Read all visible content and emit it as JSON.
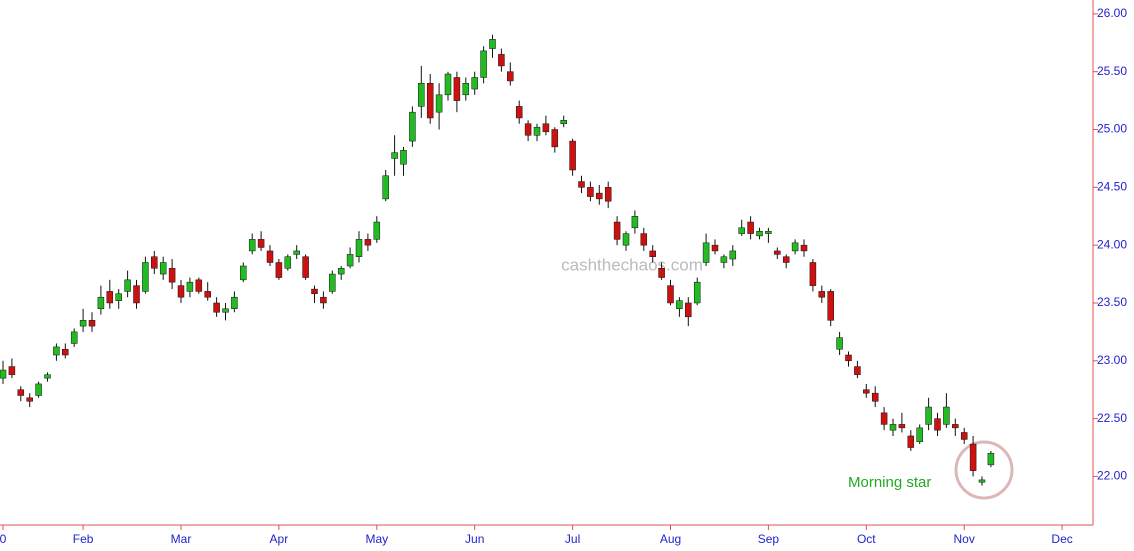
{
  "chart_data": {
    "type": "candlestick",
    "watermark": "cashthechaos.com",
    "annotation": "Morning star",
    "up_color": "#22bb22",
    "down_color": "#cc1111",
    "categories": [
      "0",
      null,
      null,
      null,
      null,
      null,
      null,
      null,
      null,
      "Feb",
      null,
      null,
      null,
      null,
      null,
      null,
      null,
      null,
      null,
      null,
      "Mar",
      null,
      null,
      null,
      null,
      null,
      null,
      null,
      null,
      null,
      null,
      "Apr",
      null,
      null,
      null,
      null,
      null,
      null,
      null,
      null,
      null,
      null,
      "May",
      null,
      null,
      null,
      null,
      null,
      null,
      null,
      null,
      null,
      null,
      "Jun",
      null,
      null,
      null,
      null,
      null,
      null,
      null,
      null,
      null,
      null,
      "Jul",
      null,
      null,
      null,
      null,
      null,
      null,
      null,
      null,
      null,
      null,
      "Aug",
      null,
      null,
      null,
      null,
      null,
      null,
      null,
      null,
      null,
      null,
      "Sep",
      null,
      null,
      null,
      null,
      null,
      null,
      null,
      null,
      null,
      null,
      "Oct",
      null,
      null,
      null,
      null,
      null,
      null,
      null,
      null,
      null,
      null,
      "Nov",
      null,
      null,
      null,
      null,
      null,
      null,
      null,
      null,
      null,
      null,
      "Dec",
      null,
      null
    ],
    "open": [
      22.85,
      22.95,
      22.75,
      22.68,
      22.7,
      22.85,
      23.05,
      23.1,
      23.15,
      23.3,
      23.35,
      23.45,
      23.6,
      23.52,
      23.6,
      23.65,
      23.6,
      23.9,
      23.75,
      23.8,
      23.65,
      23.6,
      23.7,
      23.6,
      23.5,
      23.42,
      23.45,
      23.7,
      23.95,
      24.05,
      23.95,
      23.85,
      23.8,
      23.92,
      23.9,
      23.62,
      23.55,
      23.6,
      23.75,
      23.82,
      23.9,
      24.05,
      24.05,
      24.4,
      24.75,
      24.7,
      24.9,
      25.2,
      25.4,
      25.15,
      25.3,
      25.45,
      25.3,
      25.35,
      25.45,
      25.7,
      25.65,
      25.5,
      25.2,
      25.05,
      24.95,
      25.05,
      25.0,
      25.05,
      24.9,
      24.55,
      24.5,
      24.45,
      24.5,
      24.2,
      24.0,
      24.15,
      24.1,
      23.95,
      23.8,
      23.65,
      23.45,
      23.5,
      23.5,
      23.85,
      24.0,
      23.85,
      23.88,
      24.1,
      24.2,
      24.08,
      24.1,
      23.95,
      23.9,
      23.95,
      24.0,
      23.85,
      23.6,
      23.6,
      23.1,
      23.05,
      22.95,
      22.75,
      22.72,
      22.55,
      22.4,
      22.45,
      22.35,
      22.3,
      22.45,
      22.5,
      22.45,
      22.45,
      22.38,
      22.28,
      21.95,
      22.1,
      null,
      null,
      null,
      null,
      null,
      null,
      null,
      null,
      null,
      null
    ],
    "high": [
      23.0,
      23.02,
      22.78,
      22.72,
      22.82,
      22.9,
      23.15,
      23.15,
      23.28,
      23.45,
      23.42,
      23.65,
      23.7,
      23.62,
      23.78,
      23.7,
      23.9,
      23.95,
      23.9,
      23.88,
      23.7,
      23.72,
      23.72,
      23.68,
      23.55,
      23.5,
      23.6,
      23.85,
      24.1,
      24.12,
      24.0,
      23.88,
      23.92,
      24.0,
      23.92,
      23.65,
      23.6,
      23.78,
      23.82,
      23.98,
      24.12,
      24.1,
      24.25,
      24.65,
      24.95,
      24.85,
      25.2,
      25.55,
      25.48,
      25.4,
      25.5,
      25.5,
      25.45,
      25.5,
      25.72,
      25.82,
      25.7,
      25.58,
      25.25,
      25.08,
      25.05,
      25.12,
      25.02,
      25.12,
      24.92,
      24.6,
      24.55,
      24.52,
      24.55,
      24.25,
      24.12,
      24.3,
      24.15,
      24.0,
      23.85,
      23.7,
      23.55,
      23.55,
      23.72,
      24.1,
      24.05,
      23.92,
      24.0,
      24.22,
      24.25,
      24.15,
      24.15,
      23.98,
      23.92,
      24.05,
      24.05,
      23.88,
      23.65,
      23.62,
      23.25,
      23.08,
      23.0,
      22.8,
      22.78,
      22.6,
      22.5,
      22.55,
      22.4,
      22.45,
      22.68,
      22.55,
      22.72,
      22.5,
      22.42,
      22.35,
      22.0,
      22.22,
      null,
      null,
      null,
      null,
      null,
      null,
      null,
      null,
      null,
      null
    ],
    "low": [
      22.8,
      22.85,
      22.65,
      22.6,
      22.68,
      22.82,
      23.0,
      23.02,
      23.12,
      23.25,
      23.25,
      23.4,
      23.45,
      23.45,
      23.55,
      23.45,
      23.58,
      23.75,
      23.7,
      23.62,
      23.5,
      23.55,
      23.58,
      23.52,
      23.38,
      23.35,
      23.42,
      23.68,
      23.92,
      23.95,
      23.82,
      23.7,
      23.78,
      23.88,
      23.7,
      23.5,
      23.45,
      23.58,
      23.7,
      23.8,
      23.85,
      23.95,
      24.02,
      24.38,
      24.6,
      24.6,
      24.85,
      25.1,
      25.05,
      25.0,
      25.25,
      25.15,
      25.25,
      25.3,
      25.4,
      25.62,
      25.5,
      25.38,
      25.05,
      24.9,
      24.9,
      24.95,
      24.8,
      25.02,
      24.6,
      24.45,
      24.38,
      24.35,
      24.32,
      24.0,
      23.95,
      24.1,
      23.95,
      23.85,
      23.7,
      23.48,
      23.38,
      23.3,
      23.48,
      23.82,
      23.92,
      23.8,
      23.82,
      24.08,
      24.05,
      24.05,
      24.02,
      23.88,
      23.8,
      23.92,
      23.9,
      23.6,
      23.5,
      23.3,
      23.05,
      22.95,
      22.85,
      22.68,
      22.6,
      22.4,
      22.35,
      22.38,
      22.22,
      22.28,
      22.4,
      22.35,
      22.42,
      22.35,
      22.28,
      22.0,
      21.92,
      22.08,
      null,
      null,
      null,
      null,
      null,
      null,
      null,
      null,
      null,
      null
    ],
    "close": [
      22.92,
      22.88,
      22.7,
      22.65,
      22.8,
      22.88,
      23.12,
      23.05,
      23.25,
      23.35,
      23.3,
      23.55,
      23.5,
      23.58,
      23.7,
      23.5,
      23.85,
      23.8,
      23.85,
      23.68,
      23.55,
      23.68,
      23.6,
      23.55,
      23.42,
      23.45,
      23.55,
      23.82,
      24.05,
      23.98,
      23.85,
      23.72,
      23.9,
      23.95,
      23.72,
      23.58,
      23.5,
      23.75,
      23.8,
      23.92,
      24.05,
      24.0,
      24.2,
      24.6,
      24.8,
      24.82,
      25.15,
      25.4,
      25.1,
      25.3,
      25.48,
      25.25,
      25.4,
      25.45,
      25.68,
      25.78,
      25.55,
      25.42,
      25.1,
      24.95,
      25.02,
      24.98,
      24.85,
      25.08,
      24.65,
      24.5,
      24.42,
      24.4,
      24.38,
      24.05,
      24.1,
      24.25,
      24.0,
      23.9,
      23.72,
      23.5,
      23.52,
      23.38,
      23.68,
      24.02,
      23.95,
      23.9,
      23.95,
      24.15,
      24.1,
      24.12,
      24.12,
      23.92,
      23.85,
      24.02,
      23.95,
      23.65,
      23.55,
      23.35,
      23.2,
      23.0,
      22.88,
      22.72,
      22.65,
      22.45,
      22.45,
      22.42,
      22.25,
      22.42,
      22.6,
      22.4,
      22.6,
      22.42,
      22.32,
      22.05,
      21.97,
      22.2,
      null,
      null,
      null,
      null,
      null,
      null,
      null,
      null,
      null,
      null
    ],
    "ylim": [
      21.58,
      26.12
    ],
    "yticks": [
      {
        "value": 22,
        "label": "22.00"
      },
      {
        "value": 22.5,
        "label": "22.50"
      },
      {
        "value": 23,
        "label": "23.00"
      },
      {
        "value": 23.5,
        "label": "23.50"
      },
      {
        "value": 24,
        "label": "24.00"
      },
      {
        "value": 24.5,
        "label": "24.50"
      },
      {
        "value": 25,
        "label": "25.00"
      },
      {
        "value": 25.5,
        "label": "25.50"
      },
      {
        "value": 26,
        "label": "26.00"
      }
    ]
  }
}
